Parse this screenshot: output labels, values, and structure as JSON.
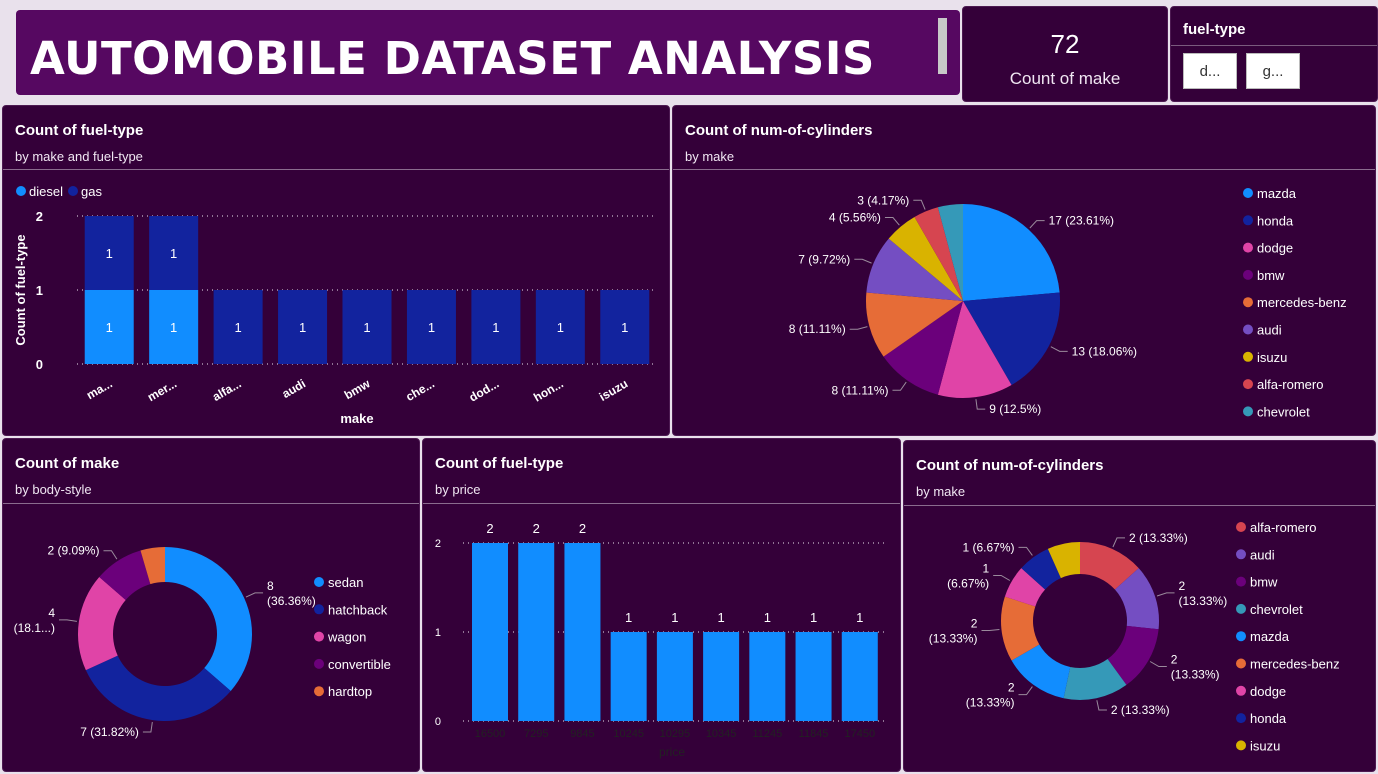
{
  "header": {
    "title": "AUTOMOBILE DATASET ANALYSIS"
  },
  "kpi": {
    "value": "72",
    "label": "Count of make"
  },
  "slicer": {
    "title": "fuel-type",
    "options": [
      "d...",
      "g..."
    ]
  },
  "colors": {
    "diesel": "#118dff",
    "gas": "#12239e",
    "mazda": "#118dff",
    "honda": "#12239e",
    "dodge": "#e044a7",
    "bmw": "#6b007b",
    "mercedes_benz": "#e66c37",
    "audi": "#744ec2",
    "isuzu": "#d9b300",
    "alfa_romero": "#d64550",
    "chevrolet": "#3599b8"
  },
  "visual1": {
    "title": "Count of fuel-type",
    "subtitle": "by make and fuel-type",
    "chart_data": {
      "type": "bar",
      "stacked": true,
      "categories": [
        "ma...",
        "mer...",
        "alfa...",
        "audi",
        "bmw",
        "che...",
        "dod...",
        "hon...",
        "isuzu"
      ],
      "series": [
        {
          "name": "diesel",
          "color": "#118dff",
          "values": [
            1,
            1,
            0,
            0,
            0,
            0,
            0,
            0,
            0
          ]
        },
        {
          "name": "gas",
          "color": "#12239e",
          "values": [
            1,
            1,
            1,
            1,
            1,
            1,
            1,
            1,
            1
          ]
        }
      ],
      "xlabel": "make",
      "ylabel": "Count of fuel-type",
      "ylim": [
        0,
        2
      ],
      "yticks": [
        "0",
        "1",
        "2"
      ],
      "legend": "top-left",
      "grid": true
    }
  },
  "visual2": {
    "title": "Count of num-of-cylinders",
    "subtitle": "by make",
    "chart_data": {
      "type": "pie",
      "slices": [
        {
          "name": "mazda",
          "value": 17,
          "label": "17 (23.61%)",
          "color": "#118dff"
        },
        {
          "name": "honda",
          "value": 13,
          "label": "13 (18.06%)",
          "color": "#12239e"
        },
        {
          "name": "dodge",
          "value": 9,
          "label": "9 (12.5%)",
          "color": "#e044a7"
        },
        {
          "name": "bmw",
          "value": 8,
          "label": "8 (11.11%)",
          "color": "#6b007b"
        },
        {
          "name": "mercedes-benz",
          "value": 8,
          "label": "8 (11.11%)",
          "color": "#e66c37"
        },
        {
          "name": "audi",
          "value": 7,
          "label": "7 (9.72%)",
          "color": "#744ec2"
        },
        {
          "name": "isuzu",
          "value": 4,
          "label": "4 (5.56%)",
          "color": "#d9b300"
        },
        {
          "name": "alfa-romero",
          "value": 3,
          "label": "3 (4.17%)",
          "color": "#d64550"
        },
        {
          "name": "chevrolet",
          "value": 3,
          "label": "",
          "color": "#3599b8"
        }
      ],
      "legend": "right"
    }
  },
  "visual3": {
    "title": "Count of make",
    "subtitle": "by body-style",
    "chart_data": {
      "type": "donut",
      "slices": [
        {
          "name": "sedan",
          "value": 8,
          "label1": "8",
          "label2": "(36.36%)",
          "color": "#118dff"
        },
        {
          "name": "hatchback",
          "value": 7,
          "label1": "7 (31.82%)",
          "label2": "",
          "color": "#12239e"
        },
        {
          "name": "wagon",
          "value": 4,
          "label1": "4",
          "label2": "(18.1...)",
          "color": "#e044a7"
        },
        {
          "name": "convertible",
          "value": 2,
          "label1": "2 (9.09%)",
          "label2": "",
          "color": "#6b007b"
        },
        {
          "name": "hardtop",
          "value": 1,
          "label1": "",
          "label2": "",
          "color": "#e66c37"
        }
      ],
      "legend": "right"
    }
  },
  "visual4": {
    "title": "Count of fuel-type",
    "subtitle": "by price",
    "chart_data": {
      "type": "bar",
      "categories": [
        "16500",
        "7295",
        "9845",
        "10245",
        "10295",
        "10345",
        "11245",
        "11845",
        "17450"
      ],
      "values": [
        2,
        2,
        2,
        1,
        1,
        1,
        1,
        1,
        1
      ],
      "color": "#118dff",
      "xlabel": "price",
      "ylabel": "",
      "ylim": [
        0,
        2
      ],
      "yticks": [
        "0",
        "1",
        "2"
      ],
      "grid": true
    }
  },
  "visual5": {
    "title": "Count of num-of-cylinders",
    "subtitle": "by make",
    "chart_data": {
      "type": "donut",
      "slices": [
        {
          "name": "alfa-romero",
          "value": 2,
          "label1": "2 (13.33%)",
          "label2": "",
          "color": "#d64550"
        },
        {
          "name": "audi",
          "value": 2,
          "label1": "2",
          "label2": "(13.33%)",
          "color": "#744ec2"
        },
        {
          "name": "bmw",
          "value": 2,
          "label1": "2",
          "label2": "(13.33%)",
          "color": "#6b007b"
        },
        {
          "name": "chevrolet",
          "value": 2,
          "label1": "2 (13.33%)",
          "label2": "",
          "color": "#3599b8"
        },
        {
          "name": "mazda",
          "value": 2,
          "label1": "2",
          "label2": "(13.33%)",
          "color": "#118dff"
        },
        {
          "name": "mercedes-benz",
          "value": 2,
          "label1": "2",
          "label2": "(13.33%)",
          "color": "#e66c37"
        },
        {
          "name": "dodge",
          "value": 1,
          "label1": "1",
          "label2": "(6.67%)",
          "color": "#e044a7"
        },
        {
          "name": "honda",
          "value": 1,
          "label1": "1 (6.67%)",
          "label2": "",
          "color": "#12239e"
        },
        {
          "name": "isuzu",
          "value": 1,
          "label1": "",
          "label2": "",
          "color": "#d9b300"
        }
      ],
      "legend": "right"
    }
  }
}
